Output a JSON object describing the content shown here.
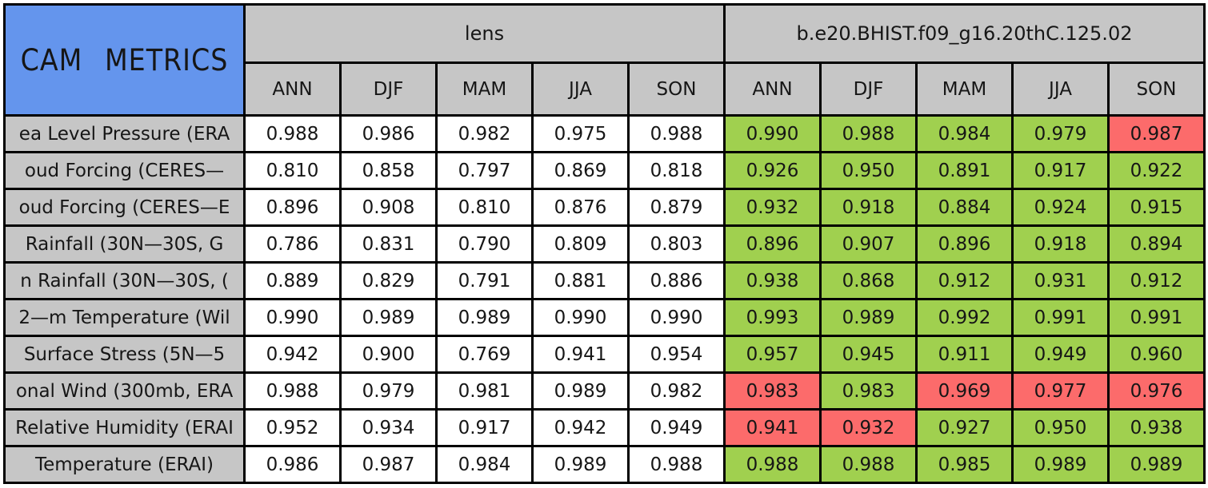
{
  "title": "CAM METRICS",
  "colors": {
    "title_bg": "#6495ED",
    "header_bg": "#C6C6C6",
    "border": "#000000",
    "good": "#A0D04F",
    "bad": "#FC6B6B",
    "plain": "#FFFFFF"
  },
  "groups": [
    {
      "label": "lens"
    },
    {
      "label": "b.e20.BHIST.f09_g16.20thC.125.02"
    }
  ],
  "seasons": [
    "ANN",
    "DJF",
    "MAM",
    "JJA",
    "SON"
  ],
  "rows": [
    {
      "label": "ea Level Pressure (ERA",
      "lens": [
        "0.988",
        "0.986",
        "0.982",
        "0.975",
        "0.988"
      ],
      "model": [
        "0.990",
        "0.988",
        "0.984",
        "0.979",
        "0.987"
      ],
      "model_colors": [
        "good",
        "good",
        "good",
        "good",
        "bad"
      ]
    },
    {
      "label": "oud Forcing (CERES—",
      "lens": [
        "0.810",
        "0.858",
        "0.797",
        "0.869",
        "0.818"
      ],
      "model": [
        "0.926",
        "0.950",
        "0.891",
        "0.917",
        "0.922"
      ],
      "model_colors": [
        "good",
        "good",
        "good",
        "good",
        "good"
      ]
    },
    {
      "label": "oud Forcing (CERES—E",
      "lens": [
        "0.896",
        "0.908",
        "0.810",
        "0.876",
        "0.879"
      ],
      "model": [
        "0.932",
        "0.918",
        "0.884",
        "0.924",
        "0.915"
      ],
      "model_colors": [
        "good",
        "good",
        "good",
        "good",
        "good"
      ]
    },
    {
      "label": "Rainfall (30N—30S, G",
      "lens": [
        "0.786",
        "0.831",
        "0.790",
        "0.809",
        "0.803"
      ],
      "model": [
        "0.896",
        "0.907",
        "0.896",
        "0.918",
        "0.894"
      ],
      "model_colors": [
        "good",
        "good",
        "good",
        "good",
        "good"
      ]
    },
    {
      "label": "n Rainfall (30N—30S, (",
      "lens": [
        "0.889",
        "0.829",
        "0.791",
        "0.881",
        "0.886"
      ],
      "model": [
        "0.938",
        "0.868",
        "0.912",
        "0.931",
        "0.912"
      ],
      "model_colors": [
        "good",
        "good",
        "good",
        "good",
        "good"
      ]
    },
    {
      "label": "2—m Temperature (Wil",
      "lens": [
        "0.990",
        "0.989",
        "0.989",
        "0.990",
        "0.990"
      ],
      "model": [
        "0.993",
        "0.989",
        "0.992",
        "0.991",
        "0.991"
      ],
      "model_colors": [
        "good",
        "good",
        "good",
        "good",
        "good"
      ]
    },
    {
      "label": "Surface Stress (5N—5",
      "lens": [
        "0.942",
        "0.900",
        "0.769",
        "0.941",
        "0.954"
      ],
      "model": [
        "0.957",
        "0.945",
        "0.911",
        "0.949",
        "0.960"
      ],
      "model_colors": [
        "good",
        "good",
        "good",
        "good",
        "good"
      ]
    },
    {
      "label": "onal Wind (300mb, ERA",
      "lens": [
        "0.988",
        "0.979",
        "0.981",
        "0.989",
        "0.982"
      ],
      "model": [
        "0.983",
        "0.983",
        "0.969",
        "0.977",
        "0.976"
      ],
      "model_colors": [
        "bad",
        "good",
        "bad",
        "bad",
        "bad"
      ]
    },
    {
      "label": "Relative Humidity (ERAI",
      "lens": [
        "0.952",
        "0.934",
        "0.917",
        "0.942",
        "0.949"
      ],
      "model": [
        "0.941",
        "0.932",
        "0.927",
        "0.950",
        "0.938"
      ],
      "model_colors": [
        "bad",
        "bad",
        "good",
        "good",
        "good"
      ]
    },
    {
      "label": "Temperature (ERAI)",
      "lens": [
        "0.986",
        "0.987",
        "0.984",
        "0.989",
        "0.988"
      ],
      "model": [
        "0.988",
        "0.988",
        "0.985",
        "0.989",
        "0.989"
      ],
      "model_colors": [
        "good",
        "good",
        "good",
        "good",
        "good"
      ]
    }
  ],
  "chart_data": {
    "type": "table",
    "title": "CAM METRICS",
    "column_groups": [
      {
        "name": "lens",
        "columns": [
          "ANN",
          "DJF",
          "MAM",
          "JJA",
          "SON"
        ]
      },
      {
        "name": "b.e20.BHIST.f09_g16.20thC.125.02",
        "columns": [
          "ANN",
          "DJF",
          "MAM",
          "JJA",
          "SON"
        ]
      }
    ],
    "row_labels": [
      "ea Level Pressure (ERA",
      "oud Forcing (CERES—",
      "oud Forcing (CERES—E",
      "Rainfall (30N—30S, G",
      "n Rainfall (30N—30S, (",
      "2—m Temperature (Wil",
      "Surface Stress (5N—5",
      "onal Wind (300mb, ERA",
      "Relative Humidity (ERAI",
      "Temperature (ERAI)"
    ],
    "series": [
      {
        "name": "lens",
        "values": [
          [
            0.988,
            0.986,
            0.982,
            0.975,
            0.988
          ],
          [
            0.81,
            0.858,
            0.797,
            0.869,
            0.818
          ],
          [
            0.896,
            0.908,
            0.81,
            0.876,
            0.879
          ],
          [
            0.786,
            0.831,
            0.79,
            0.809,
            0.803
          ],
          [
            0.889,
            0.829,
            0.791,
            0.881,
            0.886
          ],
          [
            0.99,
            0.989,
            0.989,
            0.99,
            0.99
          ],
          [
            0.942,
            0.9,
            0.769,
            0.941,
            0.954
          ],
          [
            0.988,
            0.979,
            0.981,
            0.989,
            0.982
          ],
          [
            0.952,
            0.934,
            0.917,
            0.942,
            0.949
          ],
          [
            0.986,
            0.987,
            0.984,
            0.989,
            0.988
          ]
        ],
        "cell_colors": [
          [
            "white",
            "white",
            "white",
            "white",
            "white"
          ],
          [
            "white",
            "white",
            "white",
            "white",
            "white"
          ],
          [
            "white",
            "white",
            "white",
            "white",
            "white"
          ],
          [
            "white",
            "white",
            "white",
            "white",
            "white"
          ],
          [
            "white",
            "white",
            "white",
            "white",
            "white"
          ],
          [
            "white",
            "white",
            "white",
            "white",
            "white"
          ],
          [
            "white",
            "white",
            "white",
            "white",
            "white"
          ],
          [
            "white",
            "white",
            "white",
            "white",
            "white"
          ],
          [
            "white",
            "white",
            "white",
            "white",
            "white"
          ],
          [
            "white",
            "white",
            "white",
            "white",
            "white"
          ]
        ]
      },
      {
        "name": "b.e20.BHIST.f09_g16.20thC.125.02",
        "values": [
          [
            0.99,
            0.988,
            0.984,
            0.979,
            0.987
          ],
          [
            0.926,
            0.95,
            0.891,
            0.917,
            0.922
          ],
          [
            0.932,
            0.918,
            0.884,
            0.924,
            0.915
          ],
          [
            0.896,
            0.907,
            0.896,
            0.918,
            0.894
          ],
          [
            0.938,
            0.868,
            0.912,
            0.931,
            0.912
          ],
          [
            0.993,
            0.989,
            0.992,
            0.991,
            0.991
          ],
          [
            0.957,
            0.945,
            0.911,
            0.949,
            0.96
          ],
          [
            0.983,
            0.983,
            0.969,
            0.977,
            0.976
          ],
          [
            0.941,
            0.932,
            0.927,
            0.95,
            0.938
          ],
          [
            0.988,
            0.988,
            0.985,
            0.989,
            0.989
          ]
        ],
        "cell_colors": [
          [
            "green",
            "green",
            "green",
            "green",
            "red"
          ],
          [
            "green",
            "green",
            "green",
            "green",
            "green"
          ],
          [
            "green",
            "green",
            "green",
            "green",
            "green"
          ],
          [
            "green",
            "green",
            "green",
            "green",
            "green"
          ],
          [
            "green",
            "green",
            "green",
            "green",
            "green"
          ],
          [
            "green",
            "green",
            "green",
            "green",
            "green"
          ],
          [
            "green",
            "green",
            "green",
            "green",
            "green"
          ],
          [
            "red",
            "green",
            "red",
            "red",
            "red"
          ],
          [
            "red",
            "red",
            "green",
            "green",
            "green"
          ],
          [
            "green",
            "green",
            "green",
            "green",
            "green"
          ]
        ]
      }
    ]
  }
}
